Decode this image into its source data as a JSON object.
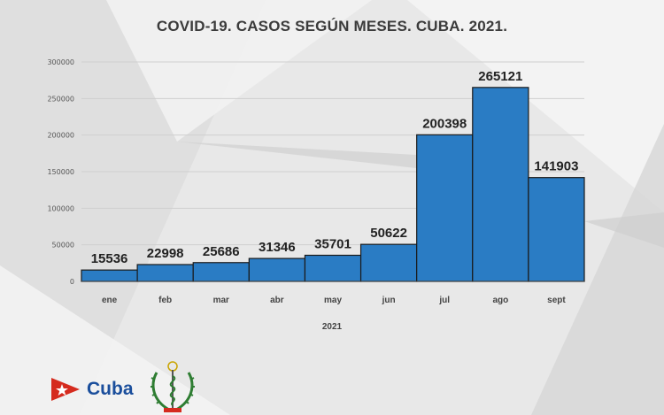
{
  "title": "COVID-19. CASOS SEGÚN MESES. CUBA. 2021.",
  "logo": {
    "text": "Cuba",
    "flag_icon": "cuba-flag-icon",
    "emblem_icon": "minsap-emblem-icon"
  },
  "colors": {
    "bar": "#2a7cc4",
    "bar_stroke": "#1a1a1a",
    "background": "#e9e9e9",
    "grid": "#cfcfcf",
    "flag_red": "#d52b1e",
    "logo_blue": "#1a4e9c",
    "emblem_green": "#2e7d32"
  },
  "chart_data": {
    "type": "bar",
    "title": "COVID-19. CASOS SEGÚN MESES. CUBA. 2021.",
    "xlabel": "2021",
    "ylabel": "",
    "categories": [
      "ene",
      "feb",
      "mar",
      "abr",
      "may",
      "jun",
      "jul",
      "ago",
      "sept"
    ],
    "values": [
      15536,
      22998,
      25686,
      31346,
      35701,
      50622,
      200398,
      265121,
      141903
    ],
    "data_labels": [
      "15536",
      "22998",
      "25686",
      "31346",
      "35701",
      "50622",
      "200398",
      "265121",
      "141903"
    ],
    "yticks": [
      0,
      50000,
      100000,
      150000,
      200000,
      250000,
      300000
    ],
    "ytick_labels": [
      "0",
      "50000",
      "100000",
      "150000",
      "200000",
      "250000",
      "300000"
    ],
    "ylim": [
      0,
      300000
    ],
    "grid": true,
    "legend": "none"
  }
}
